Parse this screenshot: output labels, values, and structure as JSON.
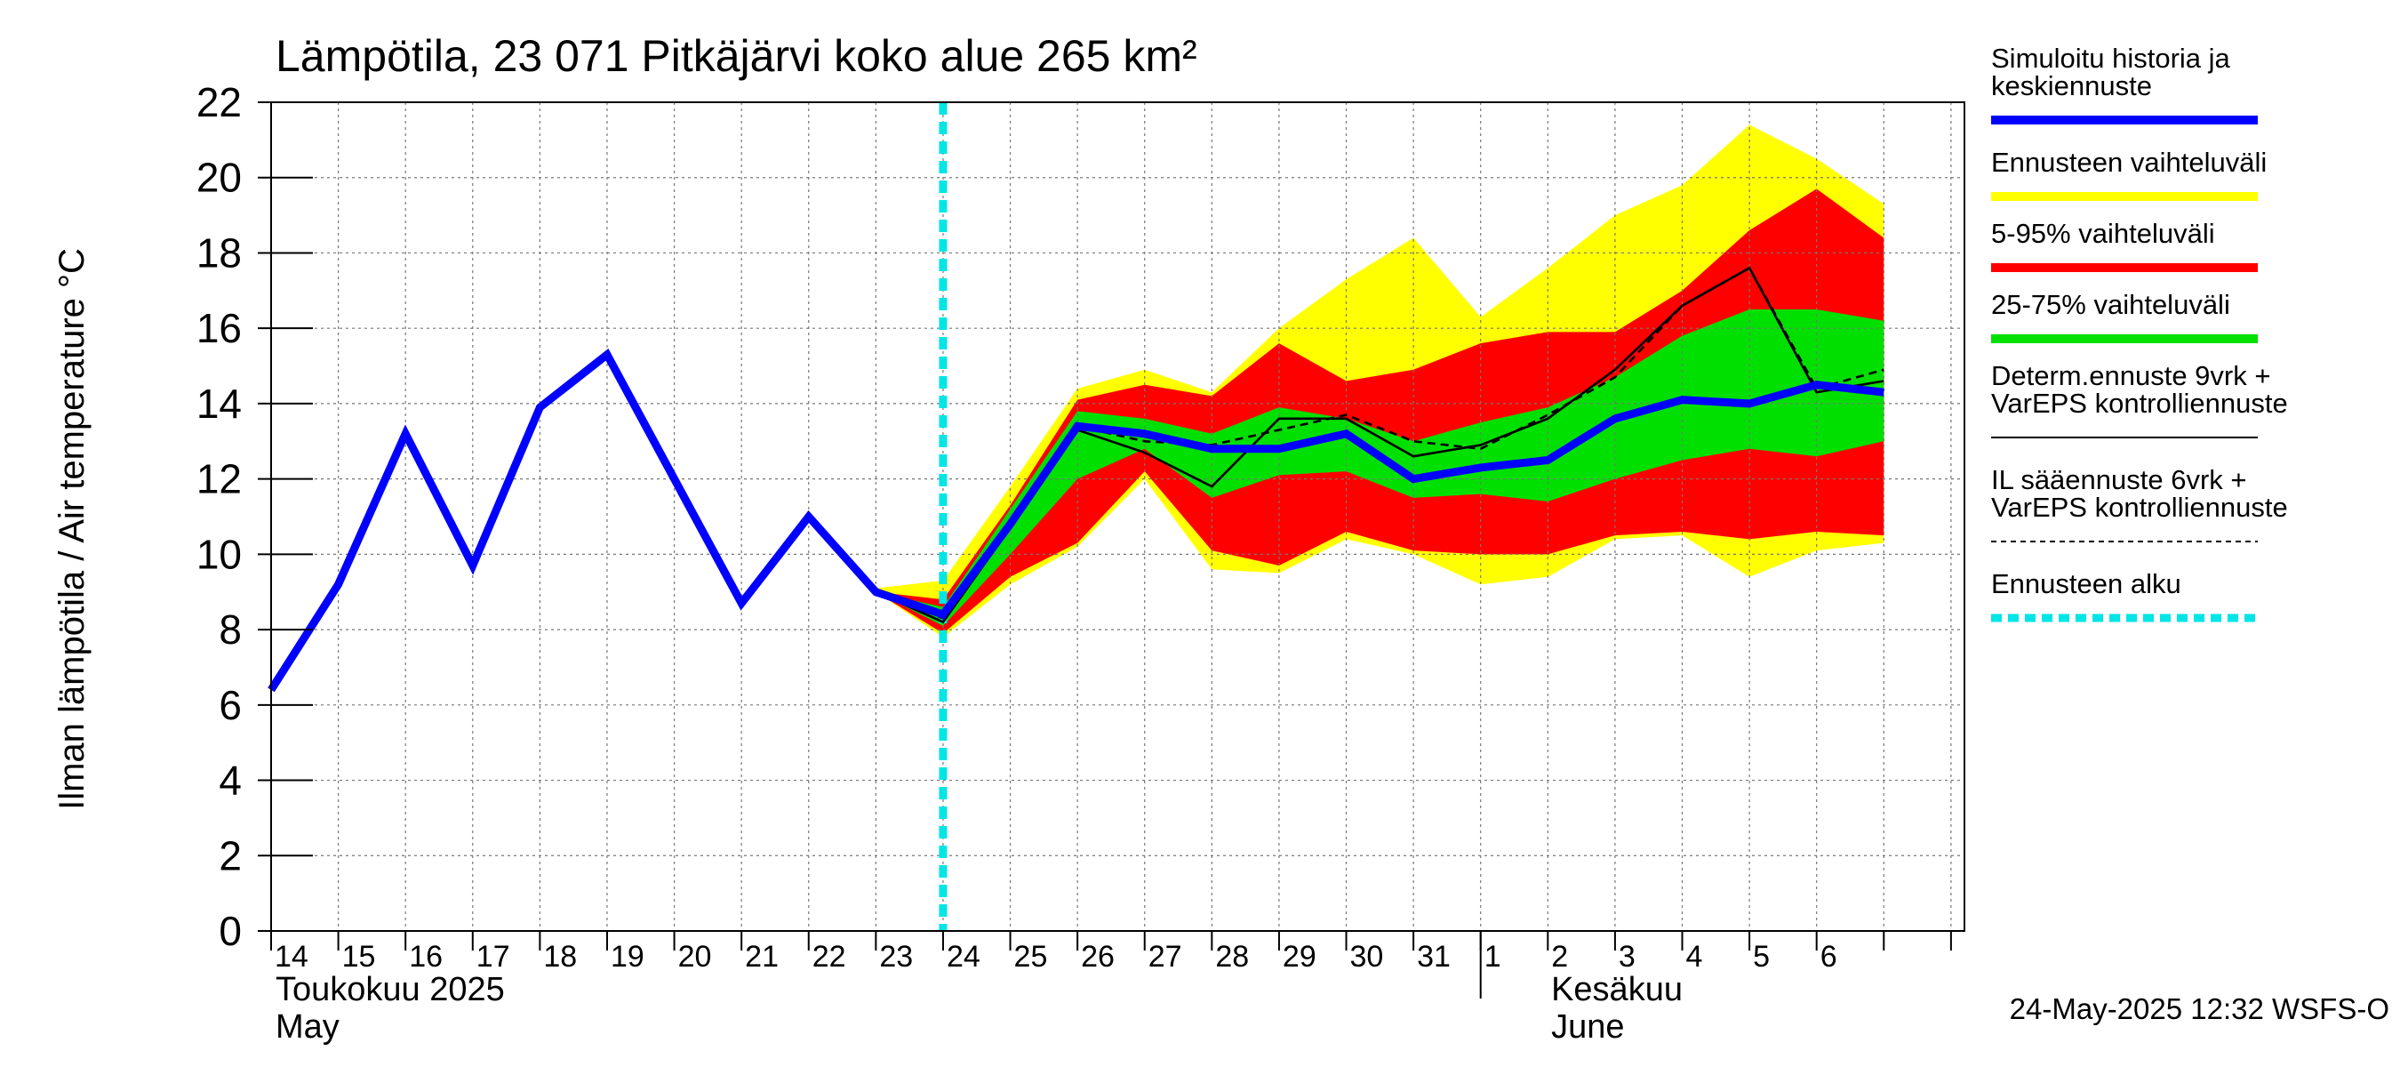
{
  "chart_data": {
    "type": "area",
    "title": "Lämpötila, 23 071 Pitkäjärvi koko alue 265 km²",
    "ylabel": "Ilman lämpötila / Air temperature   °C",
    "ylim": [
      0,
      22
    ],
    "yticks": [
      0,
      2,
      4,
      6,
      8,
      10,
      12,
      14,
      16,
      18,
      20,
      22
    ],
    "x_tick_labels": [
      "14",
      "15",
      "16",
      "17",
      "18",
      "19",
      "20",
      "21",
      "22",
      "23",
      "24",
      "25",
      "26",
      "27",
      "28",
      "29",
      "30",
      "31",
      "1",
      "2",
      "3",
      "4",
      "5",
      "6"
    ],
    "month_labels": [
      {
        "line1": "Toukokuu  2025",
        "line2": "May"
      },
      {
        "line1": "Kesäkuu",
        "line2": "June"
      }
    ],
    "grid": true,
    "legend_position": "right",
    "forecast_start": 24,
    "bands": [
      {
        "name": "Ennusteen vaihteluväli",
        "color": "#ffff00",
        "x": [
          23,
          24,
          25,
          26,
          27,
          28,
          29,
          30,
          31,
          32,
          33,
          34,
          35,
          36,
          37,
          38
        ],
        "upper": [
          9.1,
          9.3,
          11.8,
          14.4,
          14.9,
          14.3,
          16.0,
          17.3,
          18.4,
          16.3,
          17.6,
          19.0,
          19.8,
          21.4,
          20.5,
          19.3
        ],
        "lower": [
          9.0,
          7.8,
          9.2,
          10.2,
          12.0,
          9.6,
          9.5,
          10.4,
          10.0,
          9.2,
          9.4,
          10.4,
          10.5,
          9.4,
          10.1,
          10.3
        ]
      },
      {
        "name": "5-95% vaihteluväli",
        "color": "#ff0000",
        "x": [
          23,
          24,
          25,
          26,
          27,
          28,
          29,
          30,
          31,
          32,
          33,
          34,
          35,
          36,
          37,
          38
        ],
        "upper": [
          9.0,
          8.8,
          11.3,
          14.1,
          14.5,
          14.2,
          15.6,
          14.6,
          14.9,
          15.6,
          15.9,
          15.9,
          17.0,
          18.6,
          19.7,
          18.4
        ],
        "lower": [
          9.0,
          7.9,
          9.4,
          10.3,
          12.2,
          10.1,
          9.7,
          10.6,
          10.1,
          10.0,
          10.0,
          10.5,
          10.6,
          10.4,
          10.6,
          10.5
        ]
      },
      {
        "name": "25-75% vaihteluväli",
        "color": "#00e000",
        "x": [
          23,
          24,
          25,
          26,
          27,
          28,
          29,
          30,
          31,
          32,
          33,
          34,
          35,
          36,
          37,
          38
        ],
        "upper": [
          9.0,
          8.6,
          11.2,
          13.8,
          13.6,
          13.2,
          13.9,
          13.6,
          13.0,
          13.5,
          13.9,
          14.7,
          15.8,
          16.5,
          16.5,
          16.2
        ],
        "lower": [
          9.0,
          8.1,
          10.0,
          12.0,
          12.8,
          11.5,
          12.1,
          12.2,
          11.5,
          11.6,
          11.4,
          12.0,
          12.5,
          12.8,
          12.6,
          13.0
        ]
      }
    ],
    "series": [
      {
        "name": "Simuloitu historia ja keskiennuste",
        "color": "#0000ff",
        "x": [
          14,
          15,
          16,
          17,
          18,
          19,
          20,
          21,
          22,
          23,
          24,
          25,
          26,
          27,
          28,
          29,
          30,
          31,
          32,
          33,
          34,
          35,
          36,
          37,
          38
        ],
        "y": [
          6.4,
          9.2,
          13.2,
          9.7,
          13.9,
          15.3,
          12.0,
          8.7,
          11.0,
          9.0,
          8.4,
          10.8,
          13.4,
          13.2,
          12.8,
          12.8,
          13.2,
          12.0,
          12.3,
          12.5,
          13.6,
          14.1,
          14.0,
          14.5,
          14.3
        ]
      },
      {
        "name": "Determ.ennuste 9vrk + VarEPS kontrolliennuste",
        "color": "#000000",
        "dashed": false,
        "x": [
          22,
          23,
          24,
          25,
          26,
          27,
          28,
          29,
          30,
          31,
          32,
          33,
          34,
          35,
          36,
          37,
          38
        ],
        "y": [
          11.0,
          9.0,
          8.2,
          10.7,
          13.3,
          12.7,
          11.8,
          13.6,
          13.6,
          12.6,
          12.9,
          13.6,
          14.9,
          16.6,
          17.6,
          14.3,
          14.6
        ]
      },
      {
        "name": "IL sääennuste 6vrk  + VarEPS kontrolliennuste",
        "color": "#000000",
        "dashed": true,
        "x": [
          23,
          24,
          25,
          26,
          27,
          28,
          29,
          30,
          31,
          32,
          33,
          34,
          35,
          36,
          37,
          38
        ],
        "y": [
          9.0,
          8.3,
          10.9,
          13.4,
          13.0,
          12.9,
          13.3,
          13.7,
          13.0,
          12.8,
          13.7,
          14.7,
          16.6,
          17.6,
          14.4,
          14.9
        ]
      }
    ],
    "legend": [
      {
        "label_lines": [
          "Simuloitu historia ja",
          "keskiennuste"
        ],
        "color": "#0000ff",
        "style": "thick"
      },
      {
        "label_lines": [
          "Ennusteen vaihteluväli"
        ],
        "color": "#ffff00",
        "style": "thick"
      },
      {
        "label_lines": [
          "5-95% vaihteluväli"
        ],
        "color": "#ff0000",
        "style": "thick"
      },
      {
        "label_lines": [
          "25-75% vaihteluväli"
        ],
        "color": "#00e000",
        "style": "thick"
      },
      {
        "label_lines": [
          "Determ.ennuste 9vrk +",
          "VarEPS kontrolliennuste"
        ],
        "color": "#000000",
        "style": "thin"
      },
      {
        "label_lines": [
          "IL sääennuste 6vrk  +",
          "  VarEPS kontrolliennuste"
        ],
        "color": "#000000",
        "style": "dashed"
      },
      {
        "label_lines": [
          "Ennusteen alku"
        ],
        "color": "#00e5e5",
        "style": "dotted-thick"
      }
    ],
    "footer": "24-May-2025 12:32 WSFS-O"
  }
}
